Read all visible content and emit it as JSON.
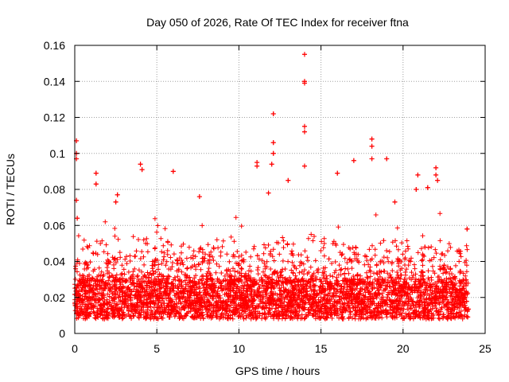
{
  "chart_data": {
    "type": "scatter",
    "title": "Day 050 of 2026, Rate Of TEC Index for receiver ftna",
    "xlabel": "GPS time / hours",
    "ylabel": "ROTI / TECUs",
    "xlim": [
      0,
      25
    ],
    "ylim": [
      0,
      0.16
    ],
    "x_ticks": [
      0,
      5,
      10,
      15,
      20,
      25
    ],
    "y_ticks": [
      0,
      0.02,
      0.04,
      0.06,
      0.08,
      0.1,
      0.12,
      0.14,
      0.16
    ],
    "x_tick_labels": [
      "0",
      "5",
      "10",
      "15",
      "20",
      "25"
    ],
    "y_tick_labels": [
      "0",
      "0.02",
      "0.04",
      "0.06",
      "0.08",
      "0.1",
      "0.12",
      "0.14",
      "0.16"
    ],
    "grid": true,
    "marker": "+",
    "color": "#ff0000",
    "series": [
      {
        "name": "ROTI",
        "x_range": [
          0,
          24
        ],
        "baseline_band": [
          0.008,
          0.03
        ],
        "outliers": [
          {
            "x": 0.1,
            "y": 0.107
          },
          {
            "x": 0.1,
            "y": 0.1
          },
          {
            "x": 0.1,
            "y": 0.097
          },
          {
            "x": 0.1,
            "y": 0.074
          },
          {
            "x": 0.15,
            "y": 0.064
          },
          {
            "x": 1.3,
            "y": 0.089
          },
          {
            "x": 1.3,
            "y": 0.083
          },
          {
            "x": 2.6,
            "y": 0.077
          },
          {
            "x": 2.5,
            "y": 0.073
          },
          {
            "x": 4.0,
            "y": 0.094
          },
          {
            "x": 4.1,
            "y": 0.091
          },
          {
            "x": 6.0,
            "y": 0.09
          },
          {
            "x": 7.6,
            "y": 0.076
          },
          {
            "x": 11.1,
            "y": 0.095
          },
          {
            "x": 11.1,
            "y": 0.093
          },
          {
            "x": 11.8,
            "y": 0.078
          },
          {
            "x": 12.1,
            "y": 0.122
          },
          {
            "x": 12.1,
            "y": 0.106
          },
          {
            "x": 12.1,
            "y": 0.1
          },
          {
            "x": 12.0,
            "y": 0.094
          },
          {
            "x": 13.0,
            "y": 0.085
          },
          {
            "x": 14.0,
            "y": 0.155
          },
          {
            "x": 14.0,
            "y": 0.14
          },
          {
            "x": 14.0,
            "y": 0.139
          },
          {
            "x": 14.0,
            "y": 0.115
          },
          {
            "x": 14.0,
            "y": 0.112
          },
          {
            "x": 14.0,
            "y": 0.093
          },
          {
            "x": 16.0,
            "y": 0.089
          },
          {
            "x": 17.0,
            "y": 0.096
          },
          {
            "x": 18.1,
            "y": 0.108
          },
          {
            "x": 18.1,
            "y": 0.104
          },
          {
            "x": 18.1,
            "y": 0.097
          },
          {
            "x": 19.0,
            "y": 0.097
          },
          {
            "x": 19.5,
            "y": 0.073
          },
          {
            "x": 20.9,
            "y": 0.088
          },
          {
            "x": 20.8,
            "y": 0.08
          },
          {
            "x": 21.5,
            "y": 0.081
          },
          {
            "x": 22.0,
            "y": 0.092
          },
          {
            "x": 22.0,
            "y": 0.088
          },
          {
            "x": 22.1,
            "y": 0.085
          },
          {
            "x": 23.9,
            "y": 0.058
          }
        ]
      }
    ]
  }
}
